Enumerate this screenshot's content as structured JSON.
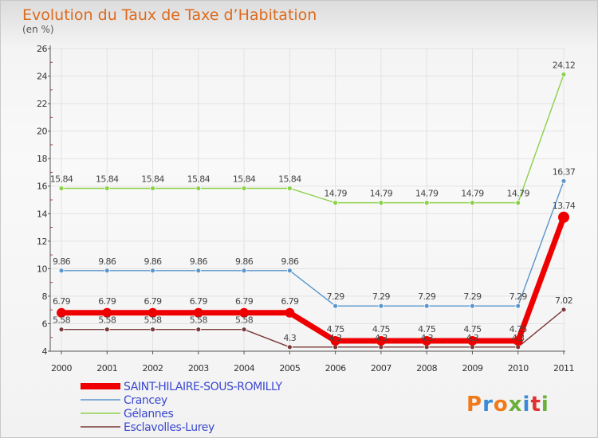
{
  "colors": {
    "title": "#dd6a1c",
    "legend_text": "#3a48d0",
    "logo": [
      "#f07a1a",
      "#3a8ad8",
      "#f07a1a",
      "#6ab03a",
      "#3a8ad8",
      "#e03030",
      "#6ab03a"
    ]
  },
  "logo_text": "Proxiti",
  "chart_data": {
    "type": "line",
    "title": "Evolution du Taux de Taxe d’Habitation",
    "subtitle": "(en %)",
    "xlabel": "",
    "ylabel": "",
    "x": [
      "2000",
      "2001",
      "2002",
      "2003",
      "2004",
      "2005",
      "2006",
      "2007",
      "2008",
      "2009",
      "2010",
      "2011"
    ],
    "ylim": [
      4,
      26
    ],
    "yticks": [
      "4",
      "6",
      "8",
      "10",
      "12",
      "14",
      "16",
      "18",
      "20",
      "22",
      "24",
      "26"
    ],
    "grid": true,
    "legend_position": "bottom-left",
    "series": [
      {
        "name": "Gélannes",
        "color": "#8cd04a",
        "values": [
          15.84,
          15.84,
          15.84,
          15.84,
          15.84,
          15.84,
          14.79,
          14.79,
          14.79,
          14.79,
          14.79,
          24.12
        ],
        "labels": [
          "15.84",
          "15.84",
          "15.84",
          "15.84",
          "15.84",
          "15.84",
          "14.79",
          "14.79",
          "14.79",
          "14.79",
          "14.79",
          "24.12"
        ]
      },
      {
        "name": "Crancey",
        "color": "#5a96cc",
        "values": [
          9.86,
          9.86,
          9.86,
          9.86,
          9.86,
          9.86,
          7.29,
          7.29,
          7.29,
          7.29,
          7.29,
          16.37
        ],
        "labels": [
          "9.86",
          "9.86",
          "9.86",
          "9.86",
          "9.86",
          "9.86",
          "7.29",
          "7.29",
          "7.29",
          "7.29",
          "7.29",
          "16.37"
        ]
      },
      {
        "name": "Esclavolles-Lurey",
        "color": "#7a3a3a",
        "values": [
          5.58,
          5.58,
          5.58,
          5.58,
          5.58,
          4.3,
          4.3,
          4.3,
          4.3,
          4.3,
          4.3,
          7.02
        ],
        "labels": [
          "5.58",
          "5.58",
          "5.58",
          "5.58",
          "5.58",
          "4.3",
          "4.3",
          "4.3",
          "4.3",
          "4.3",
          "4.3",
          "7.02"
        ]
      },
      {
        "name": "SAINT-HILAIRE-SOUS-ROMILLY",
        "color": "#ee0000",
        "values": [
          6.79,
          6.79,
          6.79,
          6.79,
          6.79,
          6.79,
          4.75,
          4.75,
          4.75,
          4.75,
          4.75,
          13.74
        ],
        "labels": [
          "6.79",
          "6.79",
          "6.79",
          "6.79",
          "6.79",
          "6.79",
          "4.75",
          "4.75",
          "4.75",
          "4.75",
          "4.75",
          "13.74"
        ]
      }
    ],
    "legend": [
      "SAINT-HILAIRE-SOUS-ROMILLY",
      "Crancey",
      "Gélannes",
      "Esclavolles-Lurey"
    ]
  }
}
